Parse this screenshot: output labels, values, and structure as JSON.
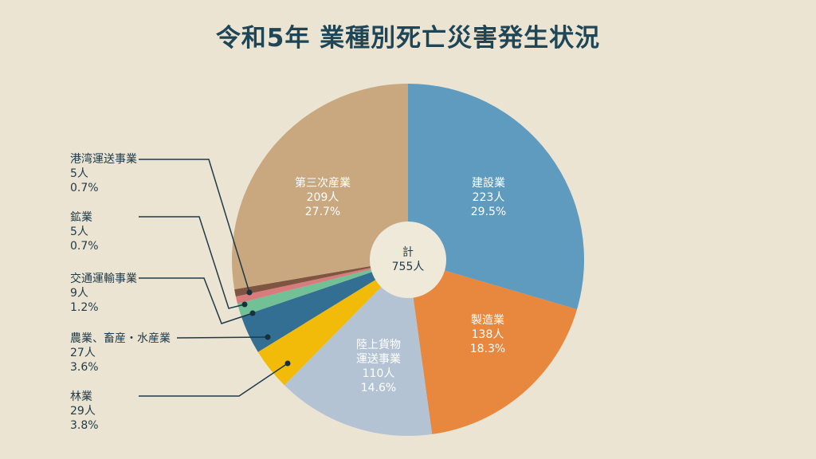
{
  "chart_data": {
    "type": "pie",
    "title": "令和5年 業種別死亡災害発生状況",
    "total_label": "計",
    "total_value": "755人",
    "slices": [
      {
        "name": "建設業",
        "value": 223,
        "count": "223人",
        "pct": "29.5%",
        "color": "#5f9bbf"
      },
      {
        "name": "製造業",
        "value": 138,
        "count": "138人",
        "pct": "18.3%",
        "color": "#e8873e"
      },
      {
        "name": "陸上貨物運送事業",
        "value": 110,
        "count": "110人",
        "pct": "14.6%",
        "color": "#b3c3d3"
      },
      {
        "name": "林業",
        "value": 29,
        "count": "29人",
        "pct": "3.8%",
        "color": "#f2bb0a"
      },
      {
        "name": "農業、畜産・水産業",
        "value": 27,
        "count": "27人",
        "pct": "3.6%",
        "color": "#336f92"
      },
      {
        "name": "交通運輸事業",
        "value": 9,
        "count": "9人",
        "pct": "1.2%",
        "color": "#72c196"
      },
      {
        "name": "鉱業",
        "value": 5,
        "count": "5人",
        "pct": "0.7%",
        "color": "#d97a7c"
      },
      {
        "name": "港湾運送事業",
        "value": 5,
        "count": "5人",
        "pct": "0.7%",
        "color": "#7d5540"
      },
      {
        "name": "第三次産業",
        "value": 209,
        "count": "209人",
        "pct": "27.7%",
        "color": "#c9a77f"
      }
    ]
  }
}
